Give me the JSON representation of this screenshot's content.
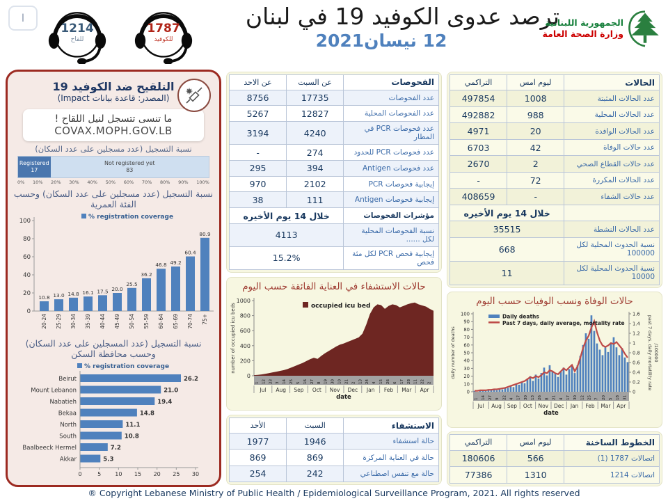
{
  "header": {
    "nav_button": "ا",
    "hotline_vaccine": {
      "number": "1214",
      "label": "للقاح"
    },
    "hotline_covid": {
      "number": "1787",
      "label": "للكوفيد"
    },
    "title": "ترصد عدوى الكوفيد 19 في لبنان",
    "date": "12 نيسان2021",
    "ministry": {
      "line1": "الجمهورية اللبنانية",
      "line2": "وزارة الصحة العامة"
    }
  },
  "vaccine_panel": {
    "title": "التلقيح ضد الكوفيد 19",
    "source": "(المصدر: قاعدة بيانات Impact)",
    "reminder_line1": "ما تنسى تتسجل لنيل اللقاح !",
    "reminder_line2": "COVAX.MOPH.GOV.LB",
    "registration_caption": "نسبة التسجيل (عدد مسجلين على عدد السكان)",
    "age_caption": "نسبة التسجيل (عدد مسجلين على عدد السكان) وحسب الفئة العمرية",
    "gov_caption": "نسبة التسجيل (عدد المسجلين على عدد السكان) وحسب محافظة السكن"
  },
  "tables": {
    "tests": {
      "columns": [
        "الفحوصات",
        "عن السبت",
        "عن الاحد"
      ],
      "rows": [
        {
          "label": "عدد الفحوصات",
          "cells": [
            "17735",
            "8756"
          ]
        },
        {
          "label": "عدد الفحوصات المحلية",
          "cells": [
            "12827",
            "5267"
          ]
        },
        {
          "label": "عدد فحوصات PCR في المطار",
          "cells": [
            "4240",
            "3194"
          ]
        },
        {
          "label": "عدد فحوصات PCR للحدود",
          "cells": [
            "274",
            "-"
          ]
        },
        {
          "label": "عدد فحوصات Antigen",
          "cells": [
            "394",
            "295"
          ]
        },
        {
          "label": "إيجابية فحوصات  PCR",
          "cells": [
            "2102",
            "970"
          ]
        },
        {
          "label": "إيجابية فحوصات  Antigen",
          "cells": [
            "111",
            "38"
          ]
        },
        {
          "label": "مؤشرات الفحوصات",
          "cells": [
            "خلال 14 يوم الأخيره"
          ],
          "span": 2,
          "bold": true
        },
        {
          "label": "نسبة الفحوصات  المحلية لكل ......",
          "cells": [
            "4113"
          ],
          "span": 2
        },
        {
          "label": "إيجابية فحص PCR لكل مئة فحص",
          "cells": [
            "15.2%"
          ],
          "span": 2
        }
      ]
    },
    "cases": {
      "columns": [
        "الحالات",
        "ليوم امس",
        "التراكمي"
      ],
      "rows": [
        {
          "label": "عدد الحالات المثبتة",
          "cells": [
            "1008",
            "497854"
          ]
        },
        {
          "label": "عدد الحالات المحلية",
          "cells": [
            "988",
            "492882"
          ]
        },
        {
          "label": "عدد الحالات الوافدة",
          "cells": [
            "20",
            "4971"
          ]
        },
        {
          "label": "عدد حالات الوفاة",
          "cells": [
            "42",
            "6703"
          ]
        },
        {
          "label": "عدد حالات القطاع الصحي",
          "cells": [
            "2",
            "2670"
          ]
        },
        {
          "label": "عدد الحالات المكررة",
          "cells": [
            "72",
            "-"
          ]
        },
        {
          "label": "عدد حالات الشفاء",
          "cells": [
            "-",
            "408659"
          ]
        },
        {
          "label": "",
          "cells": [
            "خلال 14 يوم الأخيره"
          ],
          "span": 2,
          "bold": true
        },
        {
          "label": "عدد الحالات النشطة",
          "cells": [
            "35515"
          ],
          "span": 2
        },
        {
          "label": "نسبة الحدوث المحلية لكل 100000",
          "cells": [
            "668"
          ],
          "span": 2
        },
        {
          "label": "نسبة الحدوث المحلية لكل 10000",
          "cells": [
            "11"
          ],
          "span": 2
        }
      ]
    },
    "hospitalization": {
      "columns": [
        "الاستشفاء",
        "السبت",
        "الأحد"
      ],
      "rows": [
        {
          "label": "حالة استشفاء",
          "cells": [
            "1946",
            "1977"
          ]
        },
        {
          "label": "حالة في العناية المركزة",
          "cells": [
            "869",
            "869"
          ]
        },
        {
          "label": "حالة مع تنفس اصطناعي",
          "cells": [
            "242",
            "254"
          ]
        }
      ]
    },
    "hotlines": {
      "columns": [
        "الخطوط الساخنة",
        "ليوم امس",
        "التراكمي"
      ],
      "rows": [
        {
          "label": "اتصالات 1787 (1)",
          "cells": [
            "566",
            "180606"
          ]
        },
        {
          "label": "اتصالات 1214",
          "cells": [
            "1310",
            "77386"
          ]
        }
      ]
    }
  },
  "chart_data": [
    {
      "id": "registration_stacked",
      "type": "bar",
      "orientation": "horizontal",
      "stacked": true,
      "title": "نسبة التسجيل (عدد مسجلين على عدد السكان)",
      "series": [
        {
          "name": "Registered",
          "value": 17,
          "color": "#4a76ae"
        },
        {
          "name": "Not registered yet",
          "value": 83,
          "color": "#cfdff0"
        }
      ],
      "xlim": [
        0,
        100
      ],
      "xticks": [
        "0%",
        "10%",
        "20%",
        "30%",
        "40%",
        "50%",
        "60%",
        "70%",
        "80%",
        "90%",
        "100%"
      ]
    },
    {
      "id": "age_registration",
      "type": "bar",
      "legend": "% registration coverage",
      "color": "#4f81bd",
      "title": "نسبة التسجيل وحسب الفئة العمرية",
      "categories": [
        "20-24",
        "25-29",
        "30-34",
        "35-39",
        "40-44",
        "45-49",
        "50-54",
        "55-59",
        "60-64",
        "65-69",
        "70-74",
        "75+"
      ],
      "values": [
        10.8,
        13.0,
        14.8,
        16.1,
        17.5,
        20.0,
        25.5,
        36.2,
        46.8,
        49.2,
        60.4,
        80.9
      ],
      "ylim": [
        0,
        100
      ],
      "yticks": [
        0,
        20,
        40,
        60,
        80,
        100
      ]
    },
    {
      "id": "gov_registration",
      "type": "bar",
      "orientation": "horizontal",
      "legend": "% registration coverage",
      "color": "#4f81bd",
      "title": "نسبة التسجيل وحسب محافظة السكن",
      "categories": [
        "Beirut",
        "Mount Lebanon",
        "Nabatieh",
        "Bekaa",
        "North",
        "South",
        "Baalbeeck Hermel",
        "Akkar"
      ],
      "values": [
        26.2,
        21.0,
        19.4,
        14.8,
        11.1,
        10.8,
        7.2,
        5.3
      ],
      "xlim": [
        0,
        30
      ],
      "xticks": [
        0,
        5,
        10,
        15,
        20,
        25,
        30
      ]
    },
    {
      "id": "icu_occupancy",
      "type": "area",
      "title": "حالات الاستشفاء في العناية الفائقة حسب اليوم",
      "legend": "occupied icu bed",
      "color": "#6e2622",
      "ylabel": "number of occupied icu beds",
      "xlabel": "date",
      "ylim": [
        0,
        1000
      ],
      "yticks": [
        0,
        200,
        400,
        600,
        800,
        1000
      ],
      "months": [
        "Jul",
        "Aug",
        "Sep",
        "Oct",
        "Nov",
        "Dec",
        "Jan",
        "Feb",
        "Mar",
        "Apr"
      ],
      "day_ticks": [
        "1",
        "12",
        "23",
        "3",
        "14",
        "25",
        "5",
        "16",
        "27",
        "8",
        "19",
        "30",
        "10",
        "21",
        "2",
        "13",
        "24",
        "4",
        "15",
        "26",
        "6",
        "17",
        "28",
        "11",
        "22",
        "2"
      ],
      "values": [
        8,
        12,
        18,
        25,
        35,
        45,
        55,
        65,
        75,
        90,
        110,
        130,
        150,
        170,
        195,
        220,
        240,
        225,
        265,
        300,
        330,
        360,
        390,
        415,
        430,
        450,
        470,
        490,
        510,
        560,
        680,
        820,
        910,
        950,
        940,
        890,
        930,
        950,
        940,
        910,
        930,
        950,
        965,
        975,
        950,
        935,
        920,
        890,
        865
      ]
    },
    {
      "id": "daily_deaths",
      "type": "bar+line",
      "title": "حالات الوفاة ونسب الوفيات حسب اليوم",
      "xlabel": "date",
      "ylabel_left": "daily number of deaths",
      "ylabel_right": "past 7 days, daily mortatility rate /100000",
      "ylim_left": [
        0,
        100
      ],
      "yticks_left": [
        0,
        10,
        20,
        30,
        40,
        50,
        60,
        70,
        80,
        90,
        100
      ],
      "ylim_right": [
        0,
        1.6
      ],
      "yticks_right": [
        0,
        0.2,
        0.4,
        0.6,
        0.8,
        1,
        1.2,
        1.4,
        1.6
      ],
      "months": [
        "Jul",
        "Aug",
        "Sep",
        "Oct",
        "Nov",
        "Dec",
        "Jan",
        "Feb",
        "Mar",
        "Apr"
      ],
      "day_ticks": [
        "1",
        "14",
        "27",
        "9",
        "22",
        "4",
        "17",
        "30",
        "13",
        "26",
        "8",
        "21",
        "4",
        "17",
        "30",
        "12",
        "25",
        "7",
        "20",
        "5",
        "18",
        "31"
      ],
      "series": [
        {
          "name": "Daily deaths",
          "type": "bar",
          "color": "#4f81bd",
          "values": [
            1,
            0,
            1,
            2,
            1,
            2,
            2,
            3,
            2,
            4,
            3,
            5,
            5,
            8,
            6,
            10,
            9,
            13,
            11,
            16,
            20,
            14,
            22,
            17,
            24,
            31,
            21,
            34,
            27,
            23,
            19,
            26,
            31,
            22,
            29,
            33,
            24,
            34,
            46,
            60,
            75,
            68,
            98,
            78,
            62,
            54,
            47,
            57,
            51,
            63,
            70,
            57,
            47,
            56,
            44,
            38
          ]
        },
        {
          "name": "Past 7 days, daily average, mortality rate",
          "type": "line",
          "color": "#be4b48",
          "values": [
            0.02,
            0.02,
            0.03,
            0.03,
            0.03,
            0.04,
            0.04,
            0.05,
            0.05,
            0.06,
            0.07,
            0.08,
            0.1,
            0.12,
            0.14,
            0.16,
            0.18,
            0.2,
            0.22,
            0.26,
            0.3,
            0.28,
            0.32,
            0.3,
            0.34,
            0.4,
            0.38,
            0.44,
            0.42,
            0.38,
            0.36,
            0.42,
            0.48,
            0.44,
            0.5,
            0.55,
            0.42,
            0.52,
            0.7,
            0.9,
            1.05,
            1.15,
            1.32,
            1.45,
            1.22,
            1.05,
            0.95,
            0.92,
            0.95,
            1.0,
            0.98,
            1.02,
            0.95,
            0.88,
            0.78,
            0.7
          ]
        }
      ]
    }
  ],
  "footer": {
    "copyright": "® Copyright Lebanese Ministry of Public Health / Epidemiological Surveillance Program, 2021. All rights reserved"
  },
  "colors": {
    "accent_blue": "#4f81bd",
    "maroon": "#6e2622",
    "line_red": "#be4b48",
    "navy": "#17375e",
    "panel_yellow": "#f7f7e1",
    "panel_pink": "#f5eae6",
    "border_red": "#9c2a21"
  }
}
